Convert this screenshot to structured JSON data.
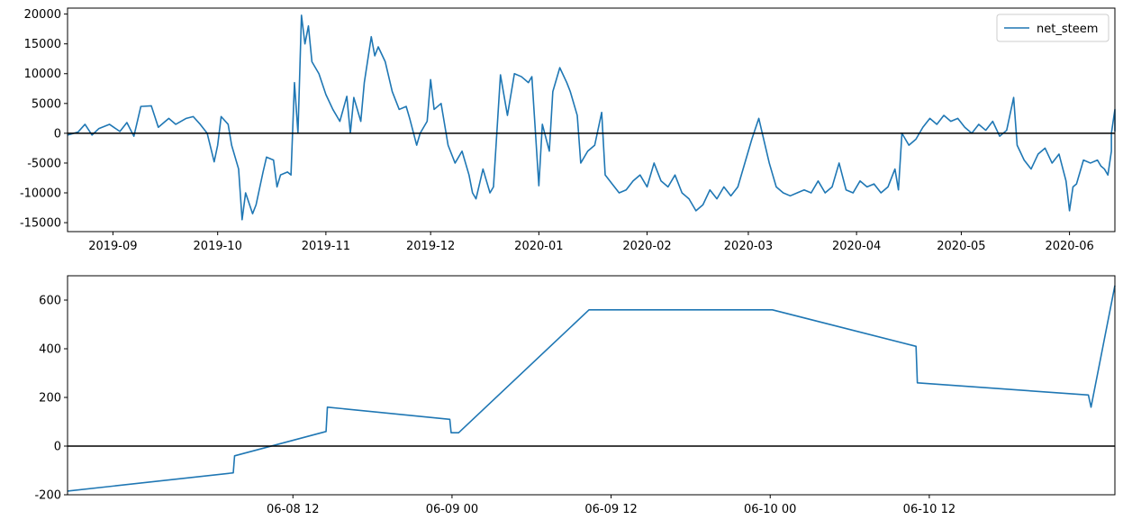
{
  "colors": {
    "series": "#1f77b4",
    "zero_line": "#000000",
    "axis": "#000000",
    "background": "#ffffff"
  },
  "chart_data": [
    {
      "type": "line",
      "title": "",
      "xlabel": "",
      "ylabel": "",
      "x_axis": "date",
      "xlim": [
        "2019-08-19",
        "2020-06-14"
      ],
      "ylim": [
        -16500,
        21000
      ],
      "yticks": [
        -15000,
        -10000,
        -5000,
        0,
        5000,
        10000,
        15000,
        20000
      ],
      "xticks": [
        {
          "date": "2019-09-01",
          "label": "2019-09"
        },
        {
          "date": "2019-10-01",
          "label": "2019-10"
        },
        {
          "date": "2019-11-01",
          "label": "2019-11"
        },
        {
          "date": "2019-12-01",
          "label": "2019-12"
        },
        {
          "date": "2020-01-01",
          "label": "2020-01"
        },
        {
          "date": "2020-02-01",
          "label": "2020-02"
        },
        {
          "date": "2020-03-01",
          "label": "2020-03"
        },
        {
          "date": "2020-04-01",
          "label": "2020-04"
        },
        {
          "date": "2020-05-01",
          "label": "2020-05"
        },
        {
          "date": "2020-06-01",
          "label": "2020-06"
        }
      ],
      "hline": 0,
      "grid": false,
      "legend": {
        "placement": "top-right",
        "entries": [
          "net_steem"
        ]
      },
      "series": [
        {
          "name": "net_steem",
          "points": [
            [
              "2019-08-19",
              -300
            ],
            [
              "2019-08-22",
              200
            ],
            [
              "2019-08-24",
              1500
            ],
            [
              "2019-08-26",
              -300
            ],
            [
              "2019-08-28",
              800
            ],
            [
              "2019-08-31",
              1500
            ],
            [
              "2019-09-03",
              300
            ],
            [
              "2019-09-05",
              1800
            ],
            [
              "2019-09-07",
              -500
            ],
            [
              "2019-09-09",
              4500
            ],
            [
              "2019-09-12",
              4600
            ],
            [
              "2019-09-14",
              1000
            ],
            [
              "2019-09-17",
              2500
            ],
            [
              "2019-09-19",
              1500
            ],
            [
              "2019-09-22",
              2500
            ],
            [
              "2019-09-24",
              2800
            ],
            [
              "2019-09-26",
              1500
            ],
            [
              "2019-09-28",
              0
            ],
            [
              "2019-09-30",
              -4800
            ],
            [
              "2019-10-01",
              -2000
            ],
            [
              "2019-10-02",
              2800
            ],
            [
              "2019-10-04",
              1500
            ],
            [
              "2019-10-05",
              -2000
            ],
            [
              "2019-10-07",
              -6000
            ],
            [
              "2019-10-08",
              -14500
            ],
            [
              "2019-10-09",
              -10000
            ],
            [
              "2019-10-11",
              -13500
            ],
            [
              "2019-10-12",
              -12000
            ],
            [
              "2019-10-14",
              -6500
            ],
            [
              "2019-10-15",
              -4000
            ],
            [
              "2019-10-17",
              -4500
            ],
            [
              "2019-10-18",
              -9000
            ],
            [
              "2019-10-19",
              -7000
            ],
            [
              "2019-10-21",
              -6500
            ],
            [
              "2019-10-22",
              -7000
            ],
            [
              "2019-10-23",
              8500
            ],
            [
              "2019-10-24",
              0
            ],
            [
              "2019-10-25",
              19800
            ],
            [
              "2019-10-26",
              15000
            ],
            [
              "2019-10-27",
              18000
            ],
            [
              "2019-10-28",
              12000
            ],
            [
              "2019-10-30",
              10000
            ],
            [
              "2019-11-01",
              6500
            ],
            [
              "2019-11-03",
              4000
            ],
            [
              "2019-11-05",
              2000
            ],
            [
              "2019-11-07",
              6200
            ],
            [
              "2019-11-08",
              0
            ],
            [
              "2019-11-09",
              6000
            ],
            [
              "2019-11-11",
              2000
            ],
            [
              "2019-11-12",
              8500
            ],
            [
              "2019-11-14",
              16200
            ],
            [
              "2019-11-15",
              13000
            ],
            [
              "2019-11-16",
              14500
            ],
            [
              "2019-11-18",
              12000
            ],
            [
              "2019-11-20",
              7000
            ],
            [
              "2019-11-22",
              4000
            ],
            [
              "2019-11-24",
              4500
            ],
            [
              "2019-11-25",
              2500
            ],
            [
              "2019-11-27",
              -2000
            ],
            [
              "2019-11-28",
              0
            ],
            [
              "2019-11-30",
              2000
            ],
            [
              "2019-12-01",
              9000
            ],
            [
              "2019-12-02",
              4000
            ],
            [
              "2019-12-04",
              5000
            ],
            [
              "2019-12-06",
              -2000
            ],
            [
              "2019-12-08",
              -5000
            ],
            [
              "2019-12-10",
              -3000
            ],
            [
              "2019-12-12",
              -7000
            ],
            [
              "2019-12-13",
              -10000
            ],
            [
              "2019-12-14",
              -11000
            ],
            [
              "2019-12-16",
              -6000
            ],
            [
              "2019-12-18",
              -10000
            ],
            [
              "2019-12-19",
              -9000
            ],
            [
              "2019-12-21",
              9800
            ],
            [
              "2019-12-23",
              3000
            ],
            [
              "2019-12-25",
              10000
            ],
            [
              "2019-12-27",
              9500
            ],
            [
              "2019-12-29",
              8500
            ],
            [
              "2019-12-30",
              9500
            ],
            [
              "2020-01-01",
              -8800
            ],
            [
              "2020-01-02",
              1500
            ],
            [
              "2020-01-04",
              -3000
            ],
            [
              "2020-01-05",
              7000
            ],
            [
              "2020-01-07",
              11000
            ],
            [
              "2020-01-09",
              8500
            ],
            [
              "2020-01-10",
              7000
            ],
            [
              "2020-01-12",
              3000
            ],
            [
              "2020-01-13",
              -5000
            ],
            [
              "2020-01-15",
              -3000
            ],
            [
              "2020-01-17",
              -2000
            ],
            [
              "2020-01-19",
              3500
            ],
            [
              "2020-01-20",
              -7000
            ],
            [
              "2020-01-22",
              -8500
            ],
            [
              "2020-01-24",
              -10000
            ],
            [
              "2020-01-26",
              -9500
            ],
            [
              "2020-01-28",
              -8000
            ],
            [
              "2020-01-30",
              -7000
            ],
            [
              "2020-02-01",
              -9000
            ],
            [
              "2020-02-03",
              -5000
            ],
            [
              "2020-02-05",
              -8000
            ],
            [
              "2020-02-07",
              -9000
            ],
            [
              "2020-02-09",
              -7000
            ],
            [
              "2020-02-11",
              -10000
            ],
            [
              "2020-02-13",
              -11000
            ],
            [
              "2020-02-15",
              -13000
            ],
            [
              "2020-02-17",
              -12000
            ],
            [
              "2020-02-19",
              -9500
            ],
            [
              "2020-02-21",
              -11000
            ],
            [
              "2020-02-23",
              -9000
            ],
            [
              "2020-02-25",
              -10500
            ],
            [
              "2020-02-27",
              -9000
            ],
            [
              "2020-03-01",
              -3000
            ],
            [
              "2020-03-02",
              -1000
            ],
            [
              "2020-03-04",
              2500
            ],
            [
              "2020-03-05",
              0
            ],
            [
              "2020-03-07",
              -5000
            ],
            [
              "2020-03-09",
              -9000
            ],
            [
              "2020-03-11",
              -10000
            ],
            [
              "2020-03-13",
              -10500
            ],
            [
              "2020-03-15",
              -10000
            ],
            [
              "2020-03-17",
              -9500
            ],
            [
              "2020-03-19",
              -10000
            ],
            [
              "2020-03-21",
              -8000
            ],
            [
              "2020-03-23",
              -10000
            ],
            [
              "2020-03-25",
              -9000
            ],
            [
              "2020-03-27",
              -5000
            ],
            [
              "2020-03-29",
              -9500
            ],
            [
              "2020-03-31",
              -10000
            ],
            [
              "2020-04-02",
              -8000
            ],
            [
              "2020-04-04",
              -9000
            ],
            [
              "2020-04-06",
              -8500
            ],
            [
              "2020-04-08",
              -10000
            ],
            [
              "2020-04-10",
              -9000
            ],
            [
              "2020-04-12",
              -6000
            ],
            [
              "2020-04-13",
              -9500
            ],
            [
              "2020-04-14",
              0
            ],
            [
              "2020-04-16",
              -2000
            ],
            [
              "2020-04-18",
              -1000
            ],
            [
              "2020-04-20",
              1000
            ],
            [
              "2020-04-22",
              2500
            ],
            [
              "2020-04-24",
              1500
            ],
            [
              "2020-04-26",
              3000
            ],
            [
              "2020-04-28",
              2000
            ],
            [
              "2020-04-30",
              2500
            ],
            [
              "2020-05-02",
              1000
            ],
            [
              "2020-05-04",
              0
            ],
            [
              "2020-05-06",
              1500
            ],
            [
              "2020-05-08",
              500
            ],
            [
              "2020-05-10",
              2000
            ],
            [
              "2020-05-12",
              -500
            ],
            [
              "2020-05-14",
              500
            ],
            [
              "2020-05-16",
              6000
            ],
            [
              "2020-05-17",
              -2000
            ],
            [
              "2020-05-19",
              -4500
            ],
            [
              "2020-05-21",
              -6000
            ],
            [
              "2020-05-23",
              -3500
            ],
            [
              "2020-05-25",
              -2500
            ],
            [
              "2020-05-27",
              -5000
            ],
            [
              "2020-05-29",
              -3500
            ],
            [
              "2020-05-31",
              -8000
            ],
            [
              "2020-06-01",
              -13000
            ],
            [
              "2020-06-02",
              -9000
            ],
            [
              "2020-06-03",
              -8500
            ],
            [
              "2020-06-05",
              -4500
            ],
            [
              "2020-06-07",
              -5000
            ],
            [
              "2020-06-09",
              -4500
            ],
            [
              "2020-06-10",
              -5500
            ],
            [
              "2020-06-11",
              -6000
            ],
            [
              "2020-06-12",
              -7000
            ],
            [
              "2020-06-13",
              -3000
            ],
            [
              "2020-06-13",
              0
            ],
            [
              "2020-06-14",
              4000
            ],
            [
              "2020-06-14",
              300
            ]
          ]
        }
      ]
    },
    {
      "type": "line",
      "title": "",
      "xlabel": "",
      "ylabel": "",
      "x_axis": "datetime",
      "xlim": [
        "2020-06-07T19:00",
        "2020-06-11T02:00"
      ],
      "ylim": [
        -200,
        700
      ],
      "yticks": [
        -200,
        0,
        200,
        400,
        600
      ],
      "xticks": [
        {
          "datetime": "2020-06-08T12:00",
          "label": "06-08 12"
        },
        {
          "datetime": "2020-06-09T00:00",
          "label": "06-09 00"
        },
        {
          "datetime": "2020-06-09T12:00",
          "label": "06-09 12"
        },
        {
          "datetime": "2020-06-10T00:00",
          "label": "06-10 00"
        },
        {
          "datetime": "2020-06-10T12:00",
          "label": "06-10 12"
        }
      ],
      "hline": 0,
      "grid": false,
      "series": [
        {
          "points": [
            [
              "2020-06-07T19:00",
              -185
            ],
            [
              "2020-06-08T07:30",
              -110
            ],
            [
              "2020-06-08T07:36",
              -40
            ],
            [
              "2020-06-08T14:30",
              60
            ],
            [
              "2020-06-08T14:36",
              160
            ],
            [
              "2020-06-08T23:50",
              110
            ],
            [
              "2020-06-08T23:56",
              55
            ],
            [
              "2020-06-09T00:30",
              55
            ],
            [
              "2020-06-09T10:20",
              560
            ],
            [
              "2020-06-10T00:10",
              560
            ],
            [
              "2020-06-10T11:00",
              410
            ],
            [
              "2020-06-10T11:06",
              260
            ],
            [
              "2020-06-11T00:00",
              210
            ],
            [
              "2020-06-11T00:12",
              160
            ],
            [
              "2020-06-11T02:00",
              660
            ]
          ]
        }
      ]
    }
  ]
}
